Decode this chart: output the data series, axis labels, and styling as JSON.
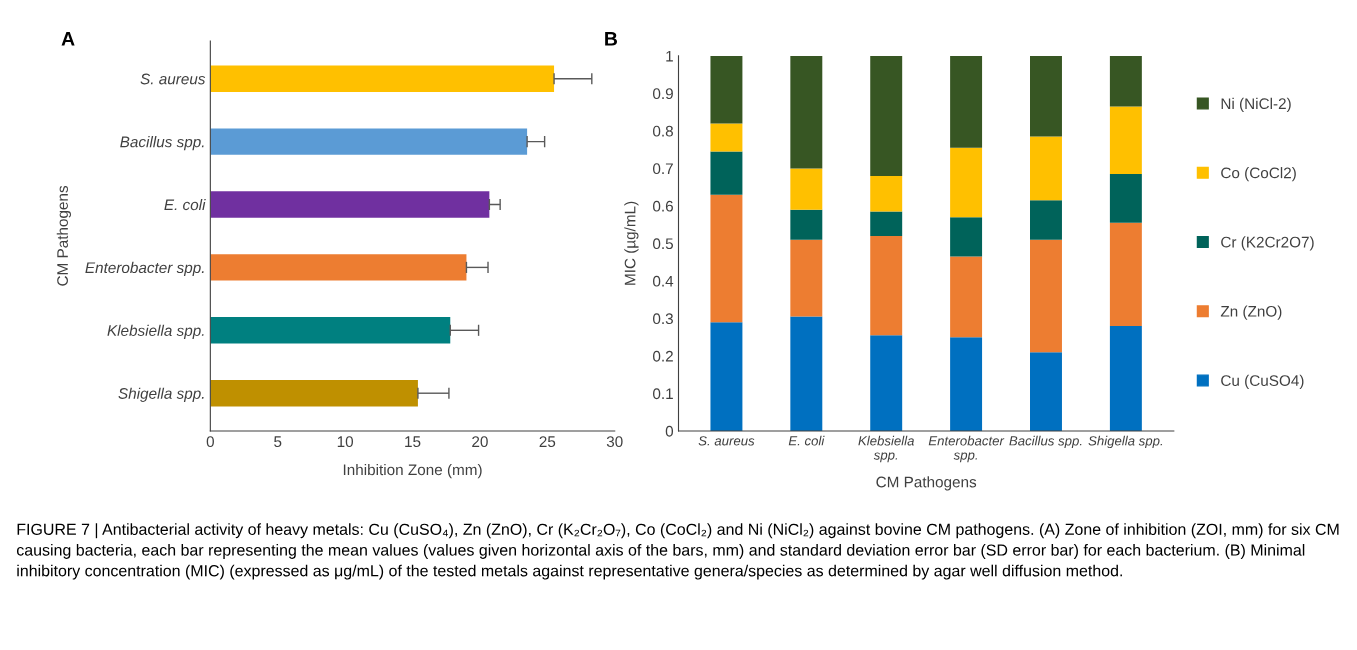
{
  "chart_data": [
    {
      "type": "bar",
      "orientation": "horizontal",
      "xlabel": "Inhibition Zone (mm)",
      "ylabel": "CM Pathogens",
      "categories": [
        "S. aureus",
        "Bacillus spp.",
        "E. coli",
        "Enterobacter spp.",
        "Klebsiella spp.",
        "Shigella spp."
      ],
      "values": [
        25.5,
        23.5,
        20.7,
        19.0,
        17.8,
        15.4
      ],
      "errors": [
        [
          25.5,
          28.3
        ],
        [
          23.5,
          24.8
        ],
        [
          20.7,
          21.5
        ],
        [
          19.0,
          20.6
        ],
        [
          17.8,
          19.9
        ],
        [
          15.4,
          17.7
        ]
      ],
      "colors": [
        "#ffc000",
        "#5b9bd5",
        "#7030a0",
        "#ed7d31",
        "#008080",
        "#bf9000"
      ],
      "xlim": [
        0,
        30
      ],
      "xticks": [
        0,
        5,
        10,
        15,
        20,
        25,
        30
      ],
      "grid": false,
      "annotations": [
        "A",
        "FIGURE 7 | Antibacterial activity of heavy metals: Cu (CuSO₄), Zn (ZnO), Cr (K₂Cr₂O₇), Co (CoCl₂) and Ni (NiCl₂) against bovine CM pathogens. (A) Zone of inhibition (ZOI, mm) for six CM causing bacteria, each bar representing the mean values (values given horizontal axis of the bars, mm) and standard deviation error bar (SD error bar) for each bacterium. (B) Minimal inhibitory concentration (MIC) (expressed as μg/mL) of the tested metals against representative genera/species as determined by agar well diffusion method."
      ]
    },
    {
      "type": "bar",
      "stacked": true,
      "xlabel": "CM Pathogens",
      "ylabel": "MIC (µg/mL)",
      "categories": [
        "S. aureus",
        "E. coli",
        "Klebsiella\nspp.",
        "Enterobacter\nspp.",
        "Bacillus spp.",
        "Shigella spp."
      ],
      "series": [
        {
          "name": "Cu (CuSO4)",
          "color": "#0070c0",
          "values": [
            0.29,
            0.305,
            0.255,
            0.25,
            0.21,
            0.28
          ]
        },
        {
          "name": "Zn (ZnO)",
          "color": "#ed7d31",
          "values": [
            0.34,
            0.205,
            0.265,
            0.215,
            0.3,
            0.275
          ]
        },
        {
          "name": "Cr (K2Cr2O7)",
          "color": "#00635a",
          "values": [
            0.115,
            0.08,
            0.065,
            0.105,
            0.105,
            0.13
          ]
        },
        {
          "name": "Co (CoCl2)",
          "color": "#ffc000",
          "values": [
            0.075,
            0.11,
            0.095,
            0.185,
            0.17,
            0.18
          ]
        },
        {
          "name": "Ni (NiCl-2)",
          "color": "#375623",
          "values": [
            0.18,
            0.3,
            0.32,
            0.245,
            0.215,
            0.135
          ]
        }
      ],
      "ylim": [
        0,
        1
      ],
      "yticks": [
        0,
        0.1,
        0.2,
        0.3,
        0.4,
        0.5,
        0.6,
        0.7,
        0.8,
        0.9,
        1
      ],
      "grid": false,
      "legend": "right",
      "annotations": [
        "B"
      ]
    }
  ]
}
